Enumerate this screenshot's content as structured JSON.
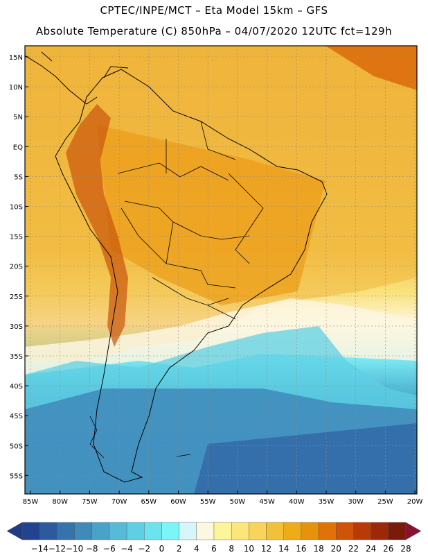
{
  "header": {
    "line1": "CPTEC/INPE/MCT –  Eta Model 15km – GFS",
    "line2": "Absolute Temperature (C) 850hPa – 04/07/2020 12UTC fct=129h"
  },
  "map": {
    "lat_labels": [
      "15N",
      "10N",
      "5N",
      "EQ",
      "5S",
      "10S",
      "15S",
      "20S",
      "25S",
      "30S",
      "35S",
      "40S",
      "45S",
      "50S",
      "55S"
    ],
    "lon_labels": [
      "85W",
      "80W",
      "75W",
      "70W",
      "65W",
      "60W",
      "55W",
      "50W",
      "45W",
      "40W",
      "35W",
      "30W",
      "25W",
      "20W"
    ]
  },
  "colorbar": {
    "labels": [
      "-14",
      "-12",
      "-10",
      "-8",
      "-6",
      "-4",
      "-2",
      "0",
      "2",
      "4",
      "6",
      "8",
      "10",
      "12",
      "14",
      "16",
      "18",
      "20",
      "22",
      "24",
      "26",
      "28"
    ],
    "colors": [
      "#22438f",
      "#2c5a9e",
      "#3573ad",
      "#3f8abb",
      "#49a3c8",
      "#55bbd6",
      "#5fd0e4",
      "#6ce3ee",
      "#7af5f8",
      "#d6f6fa",
      "#fdf6e0",
      "#fdf59a",
      "#fce67a",
      "#f8d55a",
      "#f3c137",
      "#eeac18",
      "#e7920b",
      "#e07208",
      "#cf5407",
      "#b93a07",
      "#9c2709",
      "#7a1a0a"
    ],
    "end_left_color": "#1f3a86",
    "end_right_color": "#8a1030"
  }
}
